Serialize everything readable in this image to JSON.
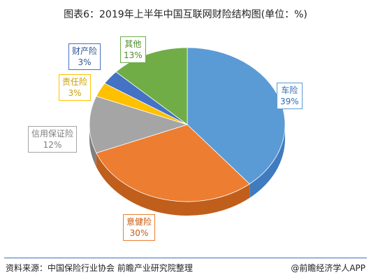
{
  "chart_data": {
    "type": "pie",
    "title": "图表6：2019年上半年中国互联网财险结构图(单位：%)",
    "slices": [
      {
        "name": "车险",
        "value": 39,
        "label": "39%",
        "color": "#5b9bd5",
        "side": "#3f7bbd",
        "text_color": "#2e6db4"
      },
      {
        "name": "意健险",
        "value": 30,
        "label": "30%",
        "color": "#ed7d31",
        "side": "#c05e1c",
        "text_color": "#c55a11"
      },
      {
        "name": "信用保证险",
        "value": 12,
        "label": "12%",
        "color": "#a5a5a5",
        "side": "#7f7f7f",
        "text_color": "#7f7f7f"
      },
      {
        "name": "责任险",
        "value": 3,
        "label": "3%",
        "color": "#ffc000",
        "side": "#c79300",
        "text_color": "#c9a000"
      },
      {
        "name": "财产险",
        "value": 3,
        "label": "3%",
        "color": "#4472c4",
        "side": "#2f5597",
        "text_color": "#2f5597"
      },
      {
        "name": "其他",
        "value": 13,
        "label": "13%",
        "color": "#70ad47",
        "side": "#4e8a2c",
        "text_color": "#4e8a2c"
      }
    ]
  },
  "footer": {
    "source": "资料来源：中国保险行业协会 前瞻产业研究院整理",
    "credit": "@前瞻经济学人APP"
  }
}
